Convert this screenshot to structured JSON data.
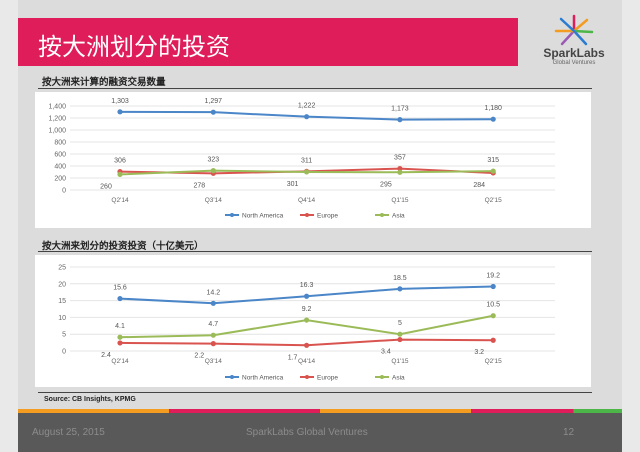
{
  "header": {
    "title": "按大洲划分的投资"
  },
  "logo": {
    "name": "SparkLabs",
    "sub": "Global Ventures"
  },
  "source": "Source: CB Insights, KPMG",
  "footer": {
    "date": "August 25, 2015",
    "org": "SparkLabs Global Ventures",
    "page": "12"
  },
  "colors": {
    "North America": "#4a86c8",
    "Europe": "#d9534f",
    "Asia": "#9bbb59"
  },
  "chart_data": [
    {
      "type": "line",
      "title": "按大洲来计算的融资交易数量",
      "categories": [
        "Q2'14",
        "Q3'14",
        "Q4'14",
        "Q1'15",
        "Q2'15"
      ],
      "ylim": [
        0,
        1400
      ],
      "yticks": [
        0,
        200,
        400,
        600,
        800,
        1000,
        1200,
        1400
      ],
      "ytick_labels": [
        "0",
        "200",
        "400",
        "600",
        "800",
        "1,000",
        "1,200",
        "1,400"
      ],
      "legend": "bottom",
      "series": [
        {
          "name": "North America",
          "values": [
            1303,
            1297,
            1222,
            1173,
            1180
          ],
          "labels": [
            "1,303",
            "1,297",
            "1,222",
            "1,173",
            "1,180"
          ]
        },
        {
          "name": "Europe",
          "values": [
            306,
            278,
            311,
            357,
            284
          ],
          "labels": [
            "306",
            "278",
            "311",
            "357",
            "284"
          ]
        },
        {
          "name": "Asia",
          "values": [
            260,
            323,
            301,
            295,
            315
          ],
          "labels": [
            "260",
            "323",
            "301",
            "295",
            "315"
          ]
        }
      ]
    },
    {
      "type": "line",
      "title": "按大洲来划分的投资投资（十亿美元）",
      "categories": [
        "Q2'14",
        "Q3'14",
        "Q4'14",
        "Q1'15",
        "Q2'15"
      ],
      "ylim": [
        0,
        25
      ],
      "yticks": [
        0,
        5,
        10,
        15,
        20,
        25
      ],
      "ytick_labels": [
        "0",
        "5",
        "10",
        "15",
        "20",
        "25"
      ],
      "legend": "bottom",
      "series": [
        {
          "name": "North America",
          "values": [
            15.6,
            14.2,
            16.3,
            18.5,
            19.2
          ],
          "labels": [
            "15.6",
            "14.2",
            "16.3",
            "18.5",
            "19.2"
          ]
        },
        {
          "name": "Europe",
          "values": [
            2.4,
            2.2,
            1.7,
            3.4,
            3.2
          ],
          "labels": [
            "2.4",
            "2.2",
            "1.7",
            "3.4",
            "3.2"
          ]
        },
        {
          "name": "Asia",
          "values": [
            4.1,
            4.7,
            9.2,
            5,
            10.5
          ],
          "labels": [
            "4.1",
            "4.7",
            "9.2",
            "5",
            "10.5"
          ]
        }
      ]
    }
  ]
}
